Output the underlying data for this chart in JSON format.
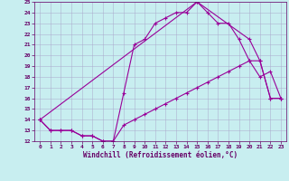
{
  "bg_color": "#c8eef0",
  "line_color": "#990099",
  "grid_color": "#aaaacc",
  "xlabel": "Windchill (Refroidissement éolien,°C)",
  "xlabel_color": "#660066",
  "tick_color": "#660066",
  "xlim": [
    -0.5,
    23.5
  ],
  "ylim": [
    12,
    25
  ],
  "yticks": [
    12,
    13,
    14,
    15,
    16,
    17,
    18,
    19,
    20,
    21,
    22,
    23,
    24,
    25
  ],
  "xticks": [
    0,
    1,
    2,
    3,
    4,
    5,
    6,
    7,
    8,
    9,
    10,
    11,
    12,
    13,
    14,
    15,
    16,
    17,
    18,
    19,
    20,
    21,
    22,
    23
  ],
  "series1_x": [
    0,
    1,
    2,
    3,
    4,
    5,
    6,
    7,
    8,
    9,
    10,
    11,
    12,
    13,
    14,
    15,
    16,
    17,
    18,
    19,
    20,
    21,
    22,
    23
  ],
  "series1_y": [
    14.0,
    13.0,
    13.0,
    13.0,
    12.5,
    12.5,
    12.0,
    12.0,
    16.5,
    21.0,
    21.5,
    23.0,
    23.5,
    24.0,
    24.0,
    25.0,
    24.0,
    23.0,
    23.0,
    21.5,
    19.5,
    18.0,
    18.5,
    16.0
  ],
  "series2_x": [
    0,
    1,
    2,
    3,
    4,
    5,
    6,
    7,
    8,
    9,
    10,
    11,
    12,
    13,
    14,
    15,
    16,
    17,
    18,
    19,
    20,
    21,
    22,
    23
  ],
  "series2_y": [
    14.0,
    13.0,
    13.0,
    13.0,
    12.5,
    12.5,
    12.0,
    12.0,
    13.5,
    14.0,
    14.5,
    15.0,
    15.5,
    16.0,
    16.5,
    17.0,
    17.5,
    18.0,
    18.5,
    19.0,
    19.5,
    19.5,
    16.0,
    16.0
  ],
  "series3_x": [
    0,
    15,
    20,
    21,
    22,
    23
  ],
  "series3_y": [
    14.0,
    25.0,
    21.5,
    19.5,
    16.0,
    16.0
  ]
}
